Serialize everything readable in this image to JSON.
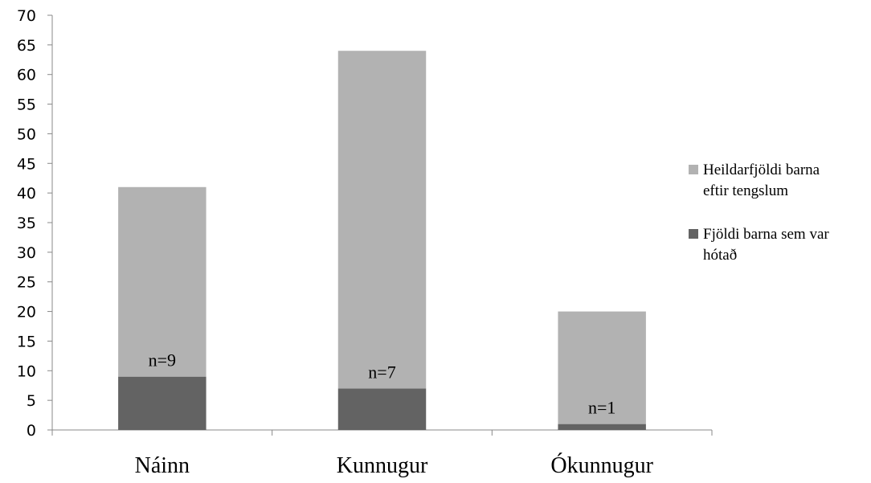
{
  "chart_data": {
    "type": "bar",
    "stacked": true,
    "categories": [
      "Náinn",
      "Kunnugur",
      "Ókunnugur"
    ],
    "series": [
      {
        "name": "Fjöldi barna sem var hótað",
        "values": [
          9,
          7,
          1
        ],
        "color": "#636363"
      },
      {
        "name": "Heildarfjöldi barna eftir tengslum",
        "values": [
          32,
          57,
          19
        ],
        "color": "#b2b2b2"
      }
    ],
    "totals": [
      41,
      64,
      20
    ],
    "data_labels": [
      "n=9",
      "n=7",
      "n=1"
    ],
    "ylim": [
      0,
      70
    ],
    "yticks": [
      "0",
      "5",
      "10",
      "15",
      "20",
      "25",
      "30",
      "35",
      "40",
      "45",
      "50",
      "55",
      "60",
      "65",
      "70"
    ],
    "grid": false,
    "legend": {
      "position": "right",
      "entries": [
        {
          "lines": [
            "Heildarfjöldi barna",
            "eftir tengslum"
          ],
          "color": "#b2b2b2"
        },
        {
          "lines": [
            "Fjöldi barna sem var",
            "hótað"
          ],
          "color": "#636363"
        }
      ]
    },
    "title": "",
    "xlabel": "",
    "ylabel": ""
  }
}
